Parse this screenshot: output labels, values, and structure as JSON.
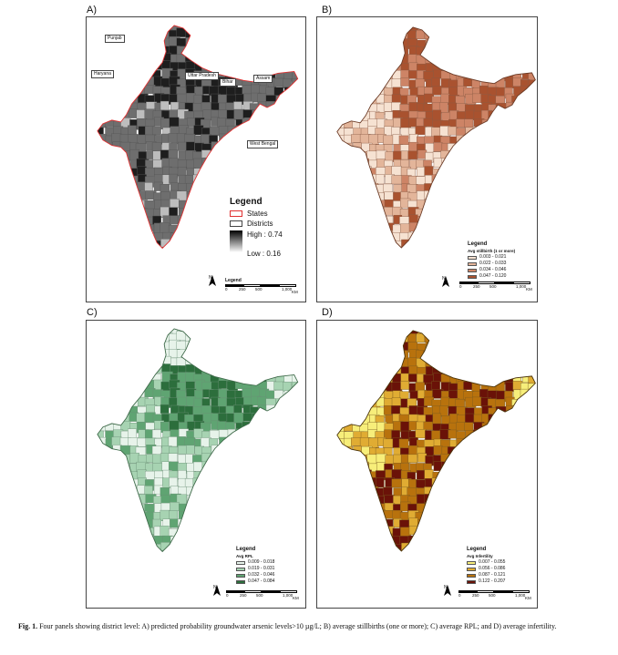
{
  "panels": {
    "a": {
      "label": "A)",
      "state_labels": [
        "Punjab",
        "Haryana",
        "Uttar Pradesh",
        "Bihar",
        "Assam",
        "West Bengal"
      ],
      "legend": {
        "title": "Legend",
        "states": "States",
        "districts": "Districts",
        "high": "High : 0.74",
        "low": "Low : 0.16"
      },
      "colors": {
        "base": "#6e6e6e",
        "dark": "#1e1e1e",
        "light": "#bdbdbd",
        "border": "#e03030"
      }
    },
    "b": {
      "label": "B)",
      "legend": {
        "title": "Legend",
        "subtitle": "Avg stillbirth (1 or more)",
        "classes": [
          "0.003 - 0.021",
          "0.022 - 0.033",
          "0.034 - 0.046",
          "0.047 - 0.120"
        ],
        "colors": [
          "#f6e2d2",
          "#e3b59a",
          "#cd8466",
          "#a9522f"
        ]
      }
    },
    "c": {
      "label": "C)",
      "legend": {
        "title": "Legend",
        "subtitle": "Avg RPL",
        "classes": [
          "0.009 - 0.018",
          "0.019 - 0.031",
          "0.032 - 0.046",
          "0.047 - 0.084"
        ],
        "colors": [
          "#e7f3ea",
          "#a7d3b2",
          "#5fa472",
          "#2c6e3c"
        ]
      }
    },
    "d": {
      "label": "D)",
      "legend": {
        "title": "Legend",
        "subtitle": "Avg Infertility",
        "classes": [
          "0.007 - 0.055",
          "0.056 - 0.086",
          "0.087 - 0.121",
          "0.122 - 0.207"
        ],
        "colors": [
          "#f7ee7a",
          "#e0ac33",
          "#b8720d",
          "#6a1208"
        ]
      }
    }
  },
  "scale": {
    "title": "Legend",
    "ticks": [
      "0",
      "250",
      "500",
      "1,000"
    ],
    "unit": "KM",
    "north": "N"
  },
  "caption": {
    "label": "Fig. 1.",
    "text": "Four panels showing district level: A) predicted probability groundwater arsenic levels>10 µg/L; B) average stillbirths (one or more); C) average RPL; and D) average infertility."
  }
}
